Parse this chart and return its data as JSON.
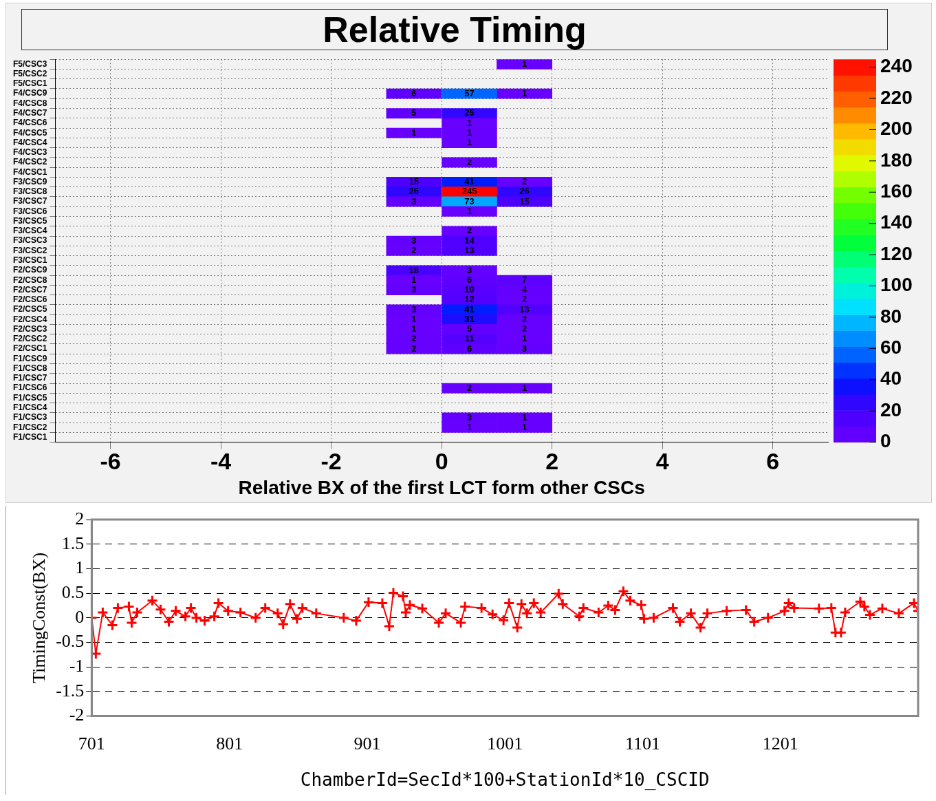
{
  "chart_data": [
    {
      "type": "heatmap",
      "title": "Relative Timing",
      "xlabel": "Relative BX of the first LCT form other CSCs",
      "x": [
        -0.5,
        0.5,
        1.5
      ],
      "xlim": [
        -7,
        7
      ],
      "xticks": [
        -6,
        -4,
        -2,
        0,
        2,
        4,
        6
      ],
      "y_categories": [
        "F5/CSC3",
        "F5/CSC2",
        "F5/CSC1",
        "F4/CSC9",
        "F4/CSC8",
        "F4/CSC7",
        "F4/CSC6",
        "F4/CSC5",
        "F4/CSC4",
        "F4/CSC3",
        "F4/CSC2",
        "F4/CSC1",
        "F3/CSC9",
        "F3/CSC8",
        "F3/CSC7",
        "F3/CSC6",
        "F3/CSC5",
        "F3/CSC4",
        "F3/CSC3",
        "F3/CSC2",
        "F3/CSC1",
        "F2/CSC9",
        "F2/CSC8",
        "F2/CSC7",
        "F2/CSC6",
        "F2/CSC5",
        "F2/CSC4",
        "F2/CSC3",
        "F2/CSC2",
        "F2/CSC1",
        "F1/CSC9",
        "F1/CSC8",
        "F1/CSC7",
        "F1/CSC6",
        "F1/CSC5",
        "F1/CSC4",
        "F1/CSC3",
        "F1/CSC2",
        "F1/CSC1"
      ],
      "cells": [
        [
          null,
          null,
          1
        ],
        [
          null,
          null,
          null
        ],
        [
          null,
          null,
          null
        ],
        [
          6,
          57,
          1
        ],
        [
          null,
          null,
          null
        ],
        [
          5,
          25,
          null
        ],
        [
          null,
          1,
          null
        ],
        [
          1,
          1,
          null
        ],
        [
          null,
          1,
          null
        ],
        [
          null,
          null,
          null
        ],
        [
          null,
          2,
          null
        ],
        [
          null,
          null,
          null
        ],
        [
          15,
          41,
          2
        ],
        [
          26,
          245,
          26
        ],
        [
          3,
          73,
          15
        ],
        [
          null,
          1,
          null
        ],
        [
          null,
          null,
          null
        ],
        [
          null,
          2,
          null
        ],
        [
          3,
          14,
          null
        ],
        [
          2,
          13,
          null
        ],
        [
          null,
          null,
          null
        ],
        [
          18,
          3,
          null
        ],
        [
          1,
          6,
          7
        ],
        [
          3,
          10,
          4
        ],
        [
          null,
          12,
          2
        ],
        [
          3,
          41,
          13
        ],
        [
          1,
          31,
          2
        ],
        [
          1,
          5,
          2
        ],
        [
          2,
          11,
          1
        ],
        [
          2,
          6,
          3
        ],
        [
          null,
          null,
          null
        ],
        [
          null,
          null,
          null
        ],
        [
          null,
          null,
          null
        ],
        [
          null,
          2,
          1
        ],
        [
          null,
          null,
          null
        ],
        [
          null,
          null,
          null
        ],
        [
          null,
          3,
          1
        ],
        [
          null,
          1,
          1
        ],
        [
          null,
          null,
          null
        ]
      ],
      "clim": [
        0,
        245
      ],
      "cticks": [
        0,
        20,
        40,
        60,
        80,
        100,
        120,
        140,
        160,
        180,
        200,
        220,
        240
      ],
      "grid": true,
      "data_labels": true
    },
    {
      "type": "line",
      "ylabel": "TimingConst(BX)",
      "xlabel": "ChamberId=SecId*100+StationId*10_CSCID",
      "xlim": [
        701,
        1301
      ],
      "xticks": [
        701,
        801,
        901,
        1001,
        1101,
        1201
      ],
      "ylim": [
        -2,
        2
      ],
      "yticks": [
        -2,
        -1.5,
        -1,
        -0.5,
        0,
        0.5,
        1,
        1.5,
        2
      ],
      "grid": "y",
      "marker": "cross",
      "series": [
        {
          "color": "#ff0000",
          "x": [
            701,
            704,
            709,
            716,
            720,
            728,
            730,
            734,
            745,
            751,
            757,
            762,
            769,
            773,
            777,
            783,
            790,
            793,
            800,
            809,
            820,
            827,
            836,
            840,
            845,
            850,
            854,
            864,
            884,
            893,
            902,
            912,
            917,
            920,
            927,
            929,
            932,
            941,
            953,
            958,
            969,
            972,
            984,
            992,
            1000,
            1004,
            1010,
            1013,
            1017,
            1022,
            1027,
            1040,
            1043,
            1055,
            1058,
            1069,
            1076,
            1081,
            1087,
            1092,
            1100,
            1102,
            1109,
            1123,
            1128,
            1136,
            1143,
            1148,
            1162,
            1176,
            1182,
            1192,
            1204,
            1207,
            1211,
            1229,
            1238,
            1241,
            1245,
            1248,
            1259,
            1262,
            1266,
            1275,
            1287,
            1298,
            1301
          ],
          "values": [
            0,
            -0.73,
            0.11,
            -0.15,
            0.2,
            0.23,
            -0.1,
            0.11,
            0.35,
            0.17,
            -0.08,
            0.14,
            0.03,
            0.2,
            0,
            -0.06,
            0.03,
            0.3,
            0.14,
            0.11,
            0,
            0.2,
            0.09,
            -0.13,
            0.28,
            -0.02,
            0.2,
            0.09,
            0,
            -0.06,
            0.32,
            0.3,
            -0.17,
            0.51,
            0.44,
            0.11,
            0.26,
            0.19,
            -0.1,
            0.09,
            -0.1,
            0.23,
            0.2,
            0.07,
            -0.05,
            0.3,
            -0.2,
            0.28,
            0.09,
            0.3,
            0.11,
            0.49,
            0.28,
            0.03,
            0.2,
            0.11,
            0.25,
            0.16,
            0.54,
            0.35,
            0.26,
            -0.02,
            0,
            0.2,
            -0.08,
            0.09,
            -0.2,
            0.09,
            0.14,
            0.16,
            -0.08,
            0,
            0.14,
            0.3,
            0.2,
            0.19,
            0.2,
            -0.3,
            -0.3,
            0.11,
            0.33,
            0.23,
            0.06,
            0.19,
            0.09,
            0.3,
            0.14
          ]
        }
      ]
    }
  ]
}
